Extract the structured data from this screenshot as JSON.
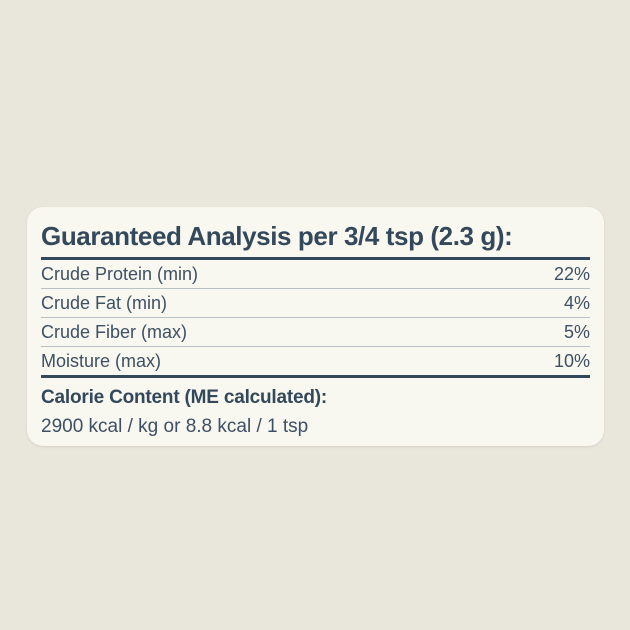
{
  "page": {
    "background_color": "#e9e6db"
  },
  "card": {
    "background_color": "#f8f7f0",
    "text_color": "#34485b",
    "row_text_color": "#3e5063",
    "thin_divider_color": "#b8c1c4",
    "thick_divider_color": "#34485b",
    "title": "Guaranteed Analysis per 3/4 tsp (2.3 g):",
    "rows": [
      {
        "label": "Crude Protein (min)",
        "value": "22%"
      },
      {
        "label": "Crude Fat (min)",
        "value": "4%"
      },
      {
        "label": "Crude Fiber (max)",
        "value": "5%"
      },
      {
        "label": "Moisture (max)",
        "value": "10%"
      }
    ],
    "calorie": {
      "heading": "Calorie Content (ME calculated):",
      "detail": "2900 kcal / kg or 8.8 kcal / 1 tsp"
    }
  }
}
